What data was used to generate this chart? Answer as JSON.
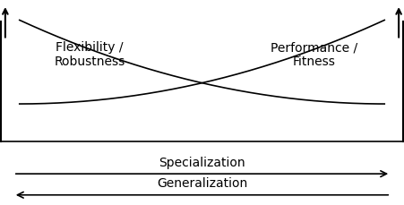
{
  "background_color": "#ffffff",
  "curve_color": "#000000",
  "arrow_color": "#000000",
  "label_left": "Flexibility /\nRobustness",
  "label_right": "Performance /\nFitness",
  "label_specialization": "Specialization",
  "label_generalization": "Generalization",
  "figsize": [
    4.51,
    2.3
  ],
  "dpi": 100
}
